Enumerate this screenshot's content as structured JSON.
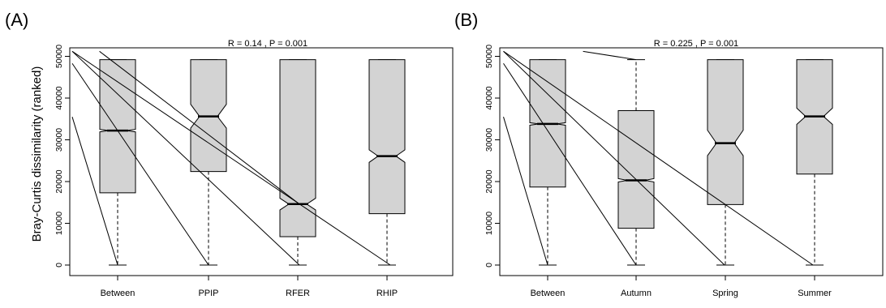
{
  "chart_data": [
    {
      "panel_label": "(A)",
      "type": "notched-boxplot",
      "stat_text": "R = 0.14 ,  P = 0.001",
      "ylabel": "Bray-Curtis dissimilarity (ranked)",
      "ylim": [
        0,
        51200
      ],
      "yticks": [
        "0",
        "10000",
        "20000",
        "30000",
        "40000",
        "50000"
      ],
      "categories": [
        "Between",
        "PPIP",
        "RFER",
        "RHIP"
      ],
      "boxes": [
        {
          "min": 0,
          "q1": 17300,
          "median": 32200,
          "q3": 49200,
          "max": 49200,
          "notch_lo": 31900,
          "notch_hi": 32500
        },
        {
          "min": 0,
          "q1": 22400,
          "median": 35600,
          "q3": 49200,
          "max": 49200,
          "notch_lo": 32800,
          "notch_hi": 38500
        },
        {
          "min": 0,
          "q1": 6800,
          "median": 14600,
          "q3": 49200,
          "max": 49200,
          "notch_lo": 13200,
          "notch_hi": 16000
        },
        {
          "min": 0,
          "q1": 12300,
          "median": 26100,
          "q3": 49200,
          "max": 49200,
          "notch_lo": 24600,
          "notch_hi": 27600
        }
      ],
      "lines": [
        {
          "x1": 0.5,
          "y1": 35500,
          "x2": 1.0,
          "y2": 0
        },
        {
          "x1": 0.5,
          "y1": 48300,
          "x2": 2.0,
          "y2": 0
        },
        {
          "x1": 0.5,
          "y1": 51200,
          "x2": 3.0,
          "y2": 0
        },
        {
          "x1": 0.5,
          "y1": 51200,
          "x2": 4.0,
          "y2": 0
        },
        {
          "x1": 0.8,
          "y1": 51200,
          "x2": 3.0,
          "y2": 14600
        }
      ]
    },
    {
      "panel_label": "(B)",
      "type": "notched-boxplot",
      "stat_text": "R = 0.225 ,  P = 0.001",
      "ylabel": "",
      "ylim": [
        0,
        51200
      ],
      "yticks": [
        "0",
        "10000",
        "20000",
        "30000",
        "40000",
        "50000"
      ],
      "categories": [
        "Between",
        "Autumn",
        "Spring",
        "Summer"
      ],
      "boxes": [
        {
          "min": 0,
          "q1": 18700,
          "median": 33800,
          "q3": 49200,
          "max": 49200,
          "notch_lo": 33500,
          "notch_hi": 34100
        },
        {
          "min": 0,
          "q1": 8800,
          "median": 20300,
          "q3": 37000,
          "max": 49200,
          "notch_lo": 19900,
          "notch_hi": 20700
        },
        {
          "min": 0,
          "q1": 14500,
          "median": 29200,
          "q3": 49200,
          "max": 49200,
          "notch_lo": 26200,
          "notch_hi": 32300
        },
        {
          "min": 0,
          "q1": 21800,
          "median": 35600,
          "q3": 49200,
          "max": 49200,
          "notch_lo": 33700,
          "notch_hi": 37600
        }
      ],
      "lines": [
        {
          "x1": 0.5,
          "y1": 35500,
          "x2": 1.0,
          "y2": 0
        },
        {
          "x1": 0.5,
          "y1": 48300,
          "x2": 2.0,
          "y2": 0
        },
        {
          "x1": 0.5,
          "y1": 51200,
          "x2": 3.0,
          "y2": 0
        },
        {
          "x1": 0.5,
          "y1": 51200,
          "x2": 4.0,
          "y2": 0
        },
        {
          "x1": 1.4,
          "y1": 51200,
          "x2": 2.0,
          "y2": 49200
        }
      ]
    }
  ]
}
